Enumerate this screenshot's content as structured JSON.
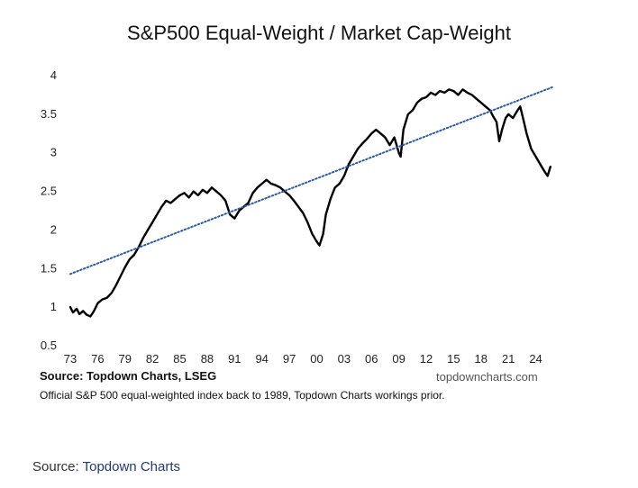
{
  "chart_data": {
    "type": "line",
    "title": "S&P500 Equal-Weight / Market Cap-Weight",
    "xlabel": "",
    "ylabel": "",
    "ylim": [
      0.5,
      4
    ],
    "xlim": [
      1973,
      2027.5
    ],
    "y_ticks": [
      "0.5",
      "1",
      "1.5",
      "2",
      "2.5",
      "3",
      "3.5",
      "4"
    ],
    "x_ticks": [
      "73",
      "76",
      "79",
      "82",
      "85",
      "88",
      "91",
      "94",
      "97",
      "00",
      "03",
      "06",
      "09",
      "12",
      "15",
      "18",
      "21",
      "24"
    ],
    "grid": false,
    "legend": "none",
    "series": [
      {
        "name": "Equal-Weight / Market Cap-Weight ratio",
        "style": "solid",
        "color": "#000000",
        "x": [
          1973.0,
          1973.3,
          1973.7,
          1974.0,
          1974.4,
          1974.8,
          1975.2,
          1975.6,
          1976.0,
          1976.5,
          1977.0,
          1977.5,
          1978.0,
          1978.5,
          1979.0,
          1979.5,
          1980.0,
          1980.5,
          1981.0,
          1981.5,
          1982.0,
          1982.5,
          1983.0,
          1983.5,
          1984.0,
          1984.5,
          1985.0,
          1985.5,
          1986.0,
          1986.5,
          1987.0,
          1987.5,
          1988.0,
          1988.5,
          1989.0,
          1989.5,
          1990.0,
          1990.5,
          1991.0,
          1991.5,
          1992.0,
          1992.5,
          1993.0,
          1993.5,
          1994.0,
          1994.5,
          1995.0,
          1995.5,
          1996.0,
          1996.5,
          1997.0,
          1997.5,
          1998.0,
          1998.5,
          1999.0,
          1999.5,
          2000.0,
          2000.3,
          2000.7,
          2001.0,
          2001.5,
          2002.0,
          2002.5,
          2003.0,
          2003.5,
          2004.0,
          2004.5,
          2005.0,
          2005.5,
          2006.0,
          2006.5,
          2007.0,
          2007.5,
          2008.0,
          2008.5,
          2009.0,
          2009.2,
          2009.5,
          2010.0,
          2010.5,
          2011.0,
          2011.5,
          2012.0,
          2012.5,
          2013.0,
          2013.5,
          2014.0,
          2014.5,
          2015.0,
          2015.5,
          2016.0,
          2016.5,
          2017.0,
          2017.5,
          2018.0,
          2018.5,
          2019.0,
          2019.3,
          2019.7,
          2020.0,
          2020.3,
          2020.7,
          2021.0,
          2021.5,
          2022.0,
          2022.3,
          2022.7,
          2023.0,
          2023.5,
          2024.0,
          2024.5,
          2025.0,
          2025.3,
          2025.6
        ],
        "values": [
          1.0,
          0.93,
          0.98,
          0.91,
          0.95,
          0.9,
          0.88,
          0.95,
          1.05,
          1.1,
          1.12,
          1.18,
          1.28,
          1.4,
          1.52,
          1.62,
          1.68,
          1.78,
          1.9,
          2.0,
          2.1,
          2.2,
          2.3,
          2.38,
          2.35,
          2.4,
          2.45,
          2.48,
          2.42,
          2.5,
          2.45,
          2.52,
          2.48,
          2.55,
          2.5,
          2.45,
          2.38,
          2.2,
          2.15,
          2.25,
          2.3,
          2.35,
          2.48,
          2.55,
          2.6,
          2.65,
          2.6,
          2.58,
          2.55,
          2.5,
          2.45,
          2.38,
          2.3,
          2.22,
          2.1,
          1.95,
          1.85,
          1.8,
          1.95,
          2.2,
          2.4,
          2.55,
          2.6,
          2.7,
          2.85,
          2.95,
          3.05,
          3.12,
          3.18,
          3.25,
          3.3,
          3.25,
          3.2,
          3.1,
          3.2,
          3.0,
          2.95,
          3.3,
          3.5,
          3.55,
          3.65,
          3.7,
          3.72,
          3.78,
          3.75,
          3.8,
          3.78,
          3.82,
          3.8,
          3.75,
          3.82,
          3.78,
          3.75,
          3.7,
          3.65,
          3.6,
          3.55,
          3.48,
          3.4,
          3.15,
          3.3,
          3.45,
          3.5,
          3.45,
          3.55,
          3.6,
          3.4,
          3.25,
          3.05,
          2.95,
          2.85,
          2.75,
          2.7,
          2.82
        ]
      },
      {
        "name": "Trend line",
        "style": "dotted",
        "color": "#2b5ca8",
        "x": [
          1973.0,
          2025.8
        ],
        "values": [
          1.43,
          3.85
        ]
      }
    ]
  },
  "source": "Source: Topdown Charts, LSEG",
  "watermark": "topdowncharts.com",
  "footnote": "Official S&P 500 equal-weighted index back to 1989, Topdown Charts workings prior.",
  "outer_source": {
    "label": "Source:",
    "link": "Topdown Charts"
  }
}
